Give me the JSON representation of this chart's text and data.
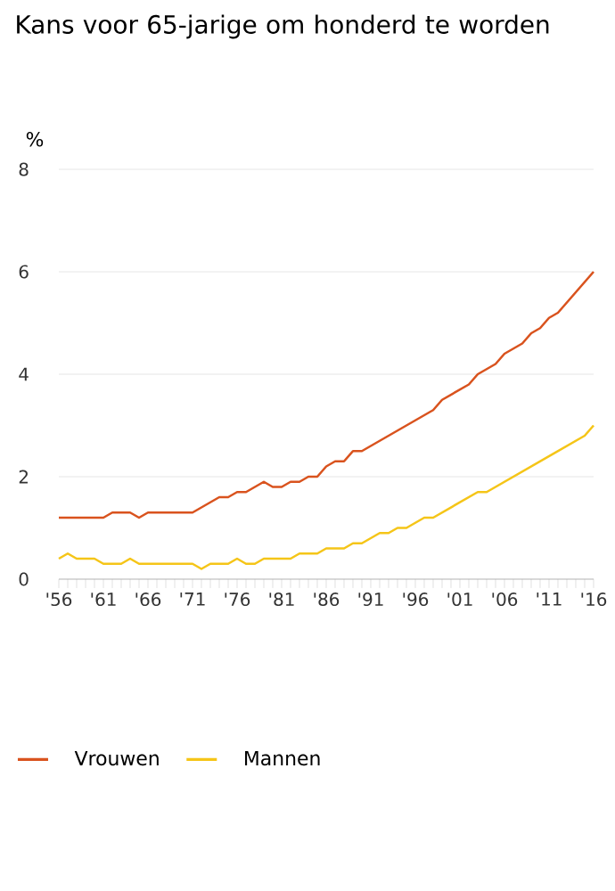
{
  "chart_data": {
    "type": "line",
    "title": "Kans voor 65-jarige om honderd te worden",
    "ylabel": "%",
    "x": [
      1956,
      1957,
      1958,
      1959,
      1960,
      1961,
      1962,
      1963,
      1964,
      1965,
      1966,
      1967,
      1968,
      1969,
      1970,
      1971,
      1972,
      1973,
      1974,
      1975,
      1976,
      1977,
      1978,
      1979,
      1980,
      1981,
      1982,
      1983,
      1984,
      1985,
      1986,
      1987,
      1988,
      1989,
      1990,
      1991,
      1992,
      1993,
      1994,
      1995,
      1996,
      1997,
      1998,
      1999,
      2000,
      2001,
      2002,
      2003,
      2004,
      2005,
      2006,
      2007,
      2008,
      2009,
      2010,
      2011,
      2012,
      2013,
      2014,
      2015,
      2016
    ],
    "series": [
      {
        "name": "Vrouwen",
        "color": "#d9531e",
        "values": [
          1.2,
          1.2,
          1.2,
          1.2,
          1.2,
          1.2,
          1.3,
          1.3,
          1.3,
          1.2,
          1.3,
          1.3,
          1.3,
          1.3,
          1.3,
          1.3,
          1.4,
          1.5,
          1.6,
          1.6,
          1.7,
          1.7,
          1.8,
          1.9,
          1.8,
          1.8,
          1.9,
          1.9,
          2.0,
          2.0,
          2.2,
          2.3,
          2.3,
          2.5,
          2.5,
          2.6,
          2.7,
          2.8,
          2.9,
          3.0,
          3.1,
          3.2,
          3.3,
          3.5,
          3.6,
          3.7,
          3.8,
          4.0,
          4.1,
          4.2,
          4.4,
          4.5,
          4.6,
          4.8,
          4.9,
          5.1,
          5.2,
          5.4,
          5.6,
          5.8,
          6.0
        ]
      },
      {
        "name": "Mannen",
        "color": "#f5c518",
        "values": [
          0.4,
          0.5,
          0.4,
          0.4,
          0.4,
          0.3,
          0.3,
          0.3,
          0.4,
          0.3,
          0.3,
          0.3,
          0.3,
          0.3,
          0.3,
          0.3,
          0.2,
          0.3,
          0.3,
          0.3,
          0.4,
          0.3,
          0.3,
          0.4,
          0.4,
          0.4,
          0.4,
          0.5,
          0.5,
          0.5,
          0.6,
          0.6,
          0.6,
          0.7,
          0.7,
          0.8,
          0.9,
          0.9,
          1.0,
          1.0,
          1.1,
          1.2,
          1.2,
          1.3,
          1.4,
          1.5,
          1.6,
          1.7,
          1.7,
          1.8,
          1.9,
          2.0,
          2.1,
          2.2,
          2.3,
          2.4,
          2.5,
          2.6,
          2.7,
          2.8,
          3.0
        ]
      }
    ],
    "xlim": [
      1956,
      2016
    ],
    "xticks": [
      {
        "value": 1956,
        "label": "'56"
      },
      {
        "value": 1961,
        "label": "'61"
      },
      {
        "value": 1966,
        "label": "'66"
      },
      {
        "value": 1971,
        "label": "'71"
      },
      {
        "value": 1976,
        "label": "'76"
      },
      {
        "value": 1981,
        "label": "'81"
      },
      {
        "value": 1986,
        "label": "'86"
      },
      {
        "value": 1991,
        "label": "'91"
      },
      {
        "value": 1996,
        "label": "'96"
      },
      {
        "value": 2001,
        "label": "'01"
      },
      {
        "value": 2006,
        "label": "'06"
      },
      {
        "value": 2011,
        "label": "'11"
      },
      {
        "value": 2016,
        "label": "'16"
      }
    ],
    "ylim": [
      0,
      8
    ],
    "yticks": [
      0,
      2,
      4,
      6,
      8
    ],
    "grid": "y",
    "legend": "bottom left",
    "marker": "none",
    "line_style": "solid"
  }
}
